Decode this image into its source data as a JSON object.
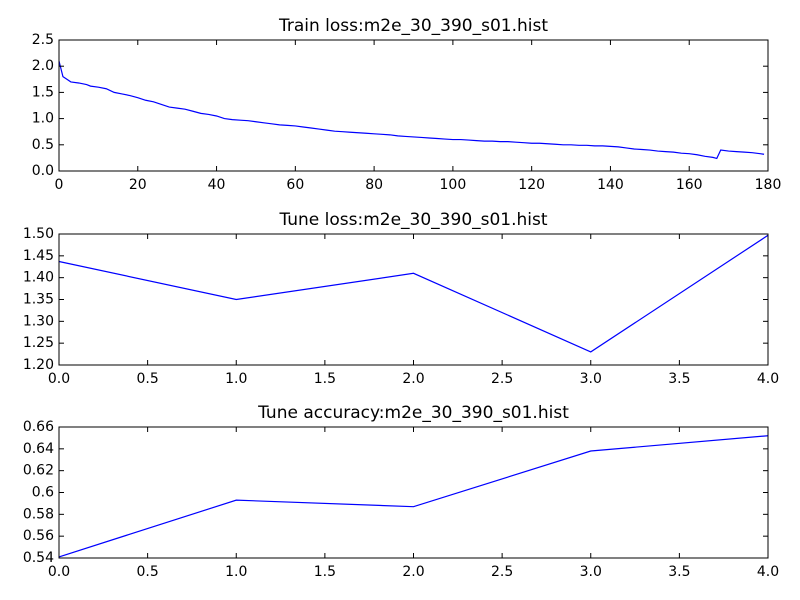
{
  "chart_data": [
    {
      "type": "line",
      "title": "Train loss:m2e_30_390_s01.hist",
      "color": "#0000ff",
      "x": [
        0,
        1,
        2,
        3,
        5,
        7,
        8,
        10,
        12,
        14,
        16,
        18,
        20,
        22,
        24,
        26,
        28,
        30,
        32,
        34,
        36,
        38,
        40,
        42,
        44,
        46,
        48,
        50,
        52,
        54,
        56,
        58,
        60,
        62,
        64,
        66,
        68,
        70,
        72,
        74,
        76,
        78,
        80,
        82,
        84,
        86,
        88,
        90,
        92,
        94,
        96,
        98,
        100,
        102,
        104,
        106,
        108,
        110,
        112,
        114,
        116,
        118,
        120,
        122,
        124,
        126,
        128,
        130,
        132,
        134,
        136,
        138,
        140,
        142,
        144,
        146,
        148,
        150,
        152,
        154,
        156,
        158,
        160,
        162,
        164,
        166,
        167,
        168,
        170,
        172,
        174,
        176,
        178,
        179
      ],
      "values": [
        2.1,
        1.8,
        1.75,
        1.7,
        1.68,
        1.65,
        1.62,
        1.6,
        1.57,
        1.5,
        1.47,
        1.44,
        1.4,
        1.35,
        1.32,
        1.27,
        1.22,
        1.2,
        1.18,
        1.14,
        1.1,
        1.08,
        1.05,
        1.0,
        0.98,
        0.97,
        0.96,
        0.94,
        0.92,
        0.9,
        0.88,
        0.87,
        0.86,
        0.84,
        0.82,
        0.8,
        0.78,
        0.76,
        0.75,
        0.74,
        0.73,
        0.72,
        0.71,
        0.7,
        0.69,
        0.67,
        0.66,
        0.65,
        0.64,
        0.63,
        0.62,
        0.61,
        0.6,
        0.6,
        0.59,
        0.58,
        0.57,
        0.57,
        0.56,
        0.56,
        0.55,
        0.54,
        0.53,
        0.53,
        0.52,
        0.51,
        0.5,
        0.5,
        0.49,
        0.49,
        0.48,
        0.48,
        0.47,
        0.46,
        0.44,
        0.42,
        0.41,
        0.4,
        0.38,
        0.37,
        0.36,
        0.34,
        0.33,
        0.31,
        0.28,
        0.26,
        0.24,
        0.4,
        0.38,
        0.37,
        0.36,
        0.35,
        0.33,
        0.32
      ],
      "xlim": [
        0,
        180
      ],
      "xticks": [
        0,
        20,
        40,
        60,
        80,
        100,
        120,
        140,
        160,
        180
      ],
      "ylim": [
        0,
        2.5
      ],
      "yticks": [
        {
          "value": 0,
          "label": "0.0"
        },
        {
          "value": 0.5,
          "label": "0.5"
        },
        {
          "value": 1,
          "label": "1.0"
        },
        {
          "value": 1.5,
          "label": "1.5"
        },
        {
          "value": 2,
          "label": "2.0"
        },
        {
          "value": 2.5,
          "label": "2.5"
        }
      ]
    },
    {
      "type": "line",
      "title": "Tune loss:m2e_30_390_s01.hist",
      "color": "#0000ff",
      "x": [
        0,
        1,
        2,
        3,
        4
      ],
      "values": [
        1.437,
        1.35,
        1.41,
        1.23,
        1.497
      ],
      "xlim": [
        0,
        4
      ],
      "xticks": [
        {
          "value": 0,
          "label": "0.0"
        },
        {
          "value": 0.5,
          "label": "0.5"
        },
        {
          "value": 1,
          "label": "1.0"
        },
        {
          "value": 1.5,
          "label": "1.5"
        },
        {
          "value": 2,
          "label": "2.0"
        },
        {
          "value": 2.5,
          "label": "2.5"
        },
        {
          "value": 3,
          "label": "3.0"
        },
        {
          "value": 3.5,
          "label": "3.5"
        },
        {
          "value": 4,
          "label": "4.0"
        }
      ],
      "ylim": [
        1.2,
        1.5
      ],
      "yticks": [
        {
          "value": 1.2,
          "label": "1.20"
        },
        {
          "value": 1.25,
          "label": "1.25"
        },
        {
          "value": 1.3,
          "label": "1.30"
        },
        {
          "value": 1.35,
          "label": "1.35"
        },
        {
          "value": 1.4,
          "label": "1.40"
        },
        {
          "value": 1.45,
          "label": "1.45"
        },
        {
          "value": 1.5,
          "label": "1.50"
        }
      ]
    },
    {
      "type": "line",
      "title": "Tune accuracy:m2e_30_390_s01.hist",
      "color": "#0000ff",
      "x": [
        0,
        1,
        2,
        3,
        4
      ],
      "values": [
        0.541,
        0.593,
        0.587,
        0.638,
        0.652
      ],
      "xlim": [
        0,
        4
      ],
      "xticks": [
        {
          "value": 0,
          "label": "0.0"
        },
        {
          "value": 0.5,
          "label": "0.5"
        },
        {
          "value": 1,
          "label": "1.0"
        },
        {
          "value": 1.5,
          "label": "1.5"
        },
        {
          "value": 2,
          "label": "2.0"
        },
        {
          "value": 2.5,
          "label": "2.5"
        },
        {
          "value": 3,
          "label": "3.0"
        },
        {
          "value": 3.5,
          "label": "3.5"
        },
        {
          "value": 4,
          "label": "4.0"
        }
      ],
      "ylim": [
        0.54,
        0.66
      ],
      "yticks": [
        0.54,
        0.56,
        0.58,
        0.6,
        0.62,
        0.64,
        0.66
      ]
    }
  ]
}
